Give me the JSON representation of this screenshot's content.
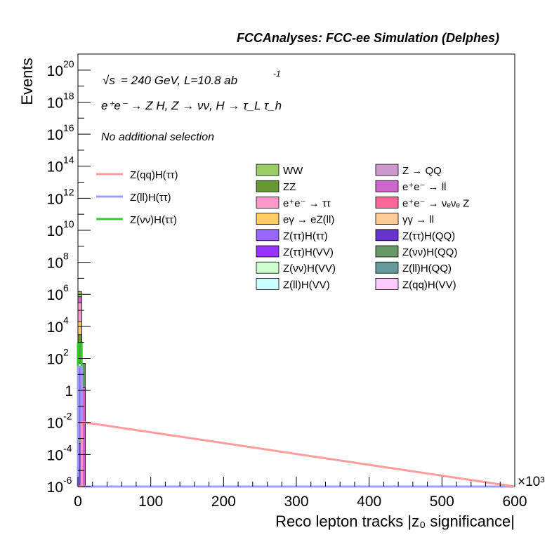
{
  "chart_data": {
    "type": "histogram",
    "title": "FCCAnalyses: FCC-ee Simulation (Delphes)",
    "energy_label": "= 240 GeV, L=10.8 ab",
    "energy_sqrt_symbol": "√s",
    "lumi_exponent": "-1",
    "process_label": "e⁺e⁻ → Z H, Z → νν, H → τ_L τ_h",
    "selection_label": "No additional selection",
    "xlabel": "Reco lepton tracks |z₀ significance|",
    "ylabel": "Events",
    "x_multiplier": "×10³",
    "y_scale": "log",
    "xlim": [
      0,
      600
    ],
    "ylim": [
      1e-06,
      1e+21
    ],
    "x_ticks": [
      0,
      100,
      200,
      300,
      400,
      500,
      600
    ],
    "x_tick_labels": [
      "0",
      "100",
      "200",
      "300",
      "400",
      "500",
      "600"
    ],
    "y_ticks": [
      {
        "value": 1e+20,
        "label": "10",
        "exp": "20"
      },
      {
        "value": 1e+18,
        "label": "10",
        "exp": "18"
      },
      {
        "value": 1e+16,
        "label": "10",
        "exp": "16"
      },
      {
        "value": 100000000000000.0,
        "label": "10",
        "exp": "14"
      },
      {
        "value": 1000000000000.0,
        "label": "10",
        "exp": "12"
      },
      {
        "value": 10000000000.0,
        "label": "10",
        "exp": "10"
      },
      {
        "value": 100000000.0,
        "label": "10",
        "exp": "8"
      },
      {
        "value": 1000000.0,
        "label": "10",
        "exp": "6"
      },
      {
        "value": 10000.0,
        "label": "10",
        "exp": "4"
      },
      {
        "value": 100.0,
        "label": "10",
        "exp": "2"
      },
      {
        "value": 1,
        "label": "1",
        "exp": ""
      },
      {
        "value": 0.01,
        "label": "10",
        "exp": "-2"
      },
      {
        "value": 0.0001,
        "label": "10",
        "exp": "-4"
      },
      {
        "value": 1e-06,
        "label": "10",
        "exp": "-6"
      }
    ],
    "signal_legend": [
      {
        "name": "Z(qq)H(ττ)",
        "color": "#ff9d9d"
      },
      {
        "name": "Z(ll)H(ττ)",
        "color": "#9f9dff"
      },
      {
        "name": "Z(νν)H(ττ)",
        "color": "#32c832"
      }
    ],
    "background_legend": [
      {
        "name": "WW",
        "color": "#99cc66"
      },
      {
        "name": "Z → QQ",
        "color": "#cc99cc"
      },
      {
        "name": "ZZ",
        "color": "#669933"
      },
      {
        "name": "e⁺e⁻ → ll",
        "color": "#cc66cc"
      },
      {
        "name": "e⁺e⁻ → ττ",
        "color": "#ff99cc"
      },
      {
        "name": "e⁺e⁻ → νₑνₑ Z",
        "color": "#ff6699"
      },
      {
        "name": "eγ → eZ(ll)",
        "color": "#ffcc66"
      },
      {
        "name": "γγ → ll",
        "color": "#ffcc99"
      },
      {
        "name": "Z(ττ)H(ττ)",
        "color": "#9966ff"
      },
      {
        "name": "Z(ττ)H(QQ)",
        "color": "#6633cc"
      },
      {
        "name": "Z(ττ)H(VV)",
        "color": "#9933ff"
      },
      {
        "name": "Z(νν)H(QQ)",
        "color": "#669966"
      },
      {
        "name": "Z(νν)H(VV)",
        "color": "#ccffcc"
      },
      {
        "name": "Z(ll)H(QQ)",
        "color": "#669999"
      },
      {
        "name": "Z(ll)H(VV)",
        "color": "#ccffff"
      },
      {
        "name": "Z(qq)H(VV)",
        "color": "#ffccff"
      }
    ],
    "stack_bins": [
      {
        "x_range": [
          0,
          5
        ],
        "segments": [
          {
            "process": "Z(νν)H(QQ)",
            "color": "#669966",
            "top": 0.001
          },
          {
            "process": "Z(ττ)H(QQ)",
            "color": "#6633cc",
            "top": 0.0005
          },
          {
            "process": "Z(ττ)H(ττ)",
            "color": "#9966ff",
            "top": 30
          },
          {
            "process": "Z(ll)H(VV)",
            "color": "#ccffff",
            "top": 50
          },
          {
            "process": "ZZ",
            "color": "#669933",
            "top": 3000
          },
          {
            "process": "eγ → eZ(ll)",
            "color": "#ffcc66",
            "top": 20000
          },
          {
            "process": "e⁺e⁻ → ττ",
            "color": "#ff99cc",
            "top": 300000
          },
          {
            "process": "e⁺e⁻ → ll",
            "color": "#cc66cc",
            "top": 700000
          },
          {
            "process": "WW",
            "color": "#99cc66",
            "top": 1500000
          }
        ]
      },
      {
        "x_range": [
          5,
          10
        ],
        "segments": [
          {
            "process": "Z(νν)H(QQ)",
            "color": "#669966",
            "top": 50
          },
          {
            "process": "e⁺e⁻ → ll",
            "color": "#cc66cc",
            "top": 1.5
          }
        ]
      }
    ],
    "signal_curves": [
      {
        "name": "Z(νν)H(ττ)",
        "color": "#32c832",
        "bins": [
          [
            0,
            5,
            800
          ],
          [
            5,
            10,
            1e-06
          ]
        ]
      },
      {
        "name": "Z(ll)H(ττ)",
        "color": "#9f9dff",
        "bins": [
          [
            0,
            5,
            30
          ],
          [
            5,
            10,
            1e-06
          ]
        ]
      },
      {
        "name": "Z(qq)H(ττ)",
        "color": "#ff9d9d",
        "bins": [
          [
            0,
            5,
            1e-06
          ],
          [
            5,
            10,
            0.01
          ]
        ]
      }
    ]
  }
}
